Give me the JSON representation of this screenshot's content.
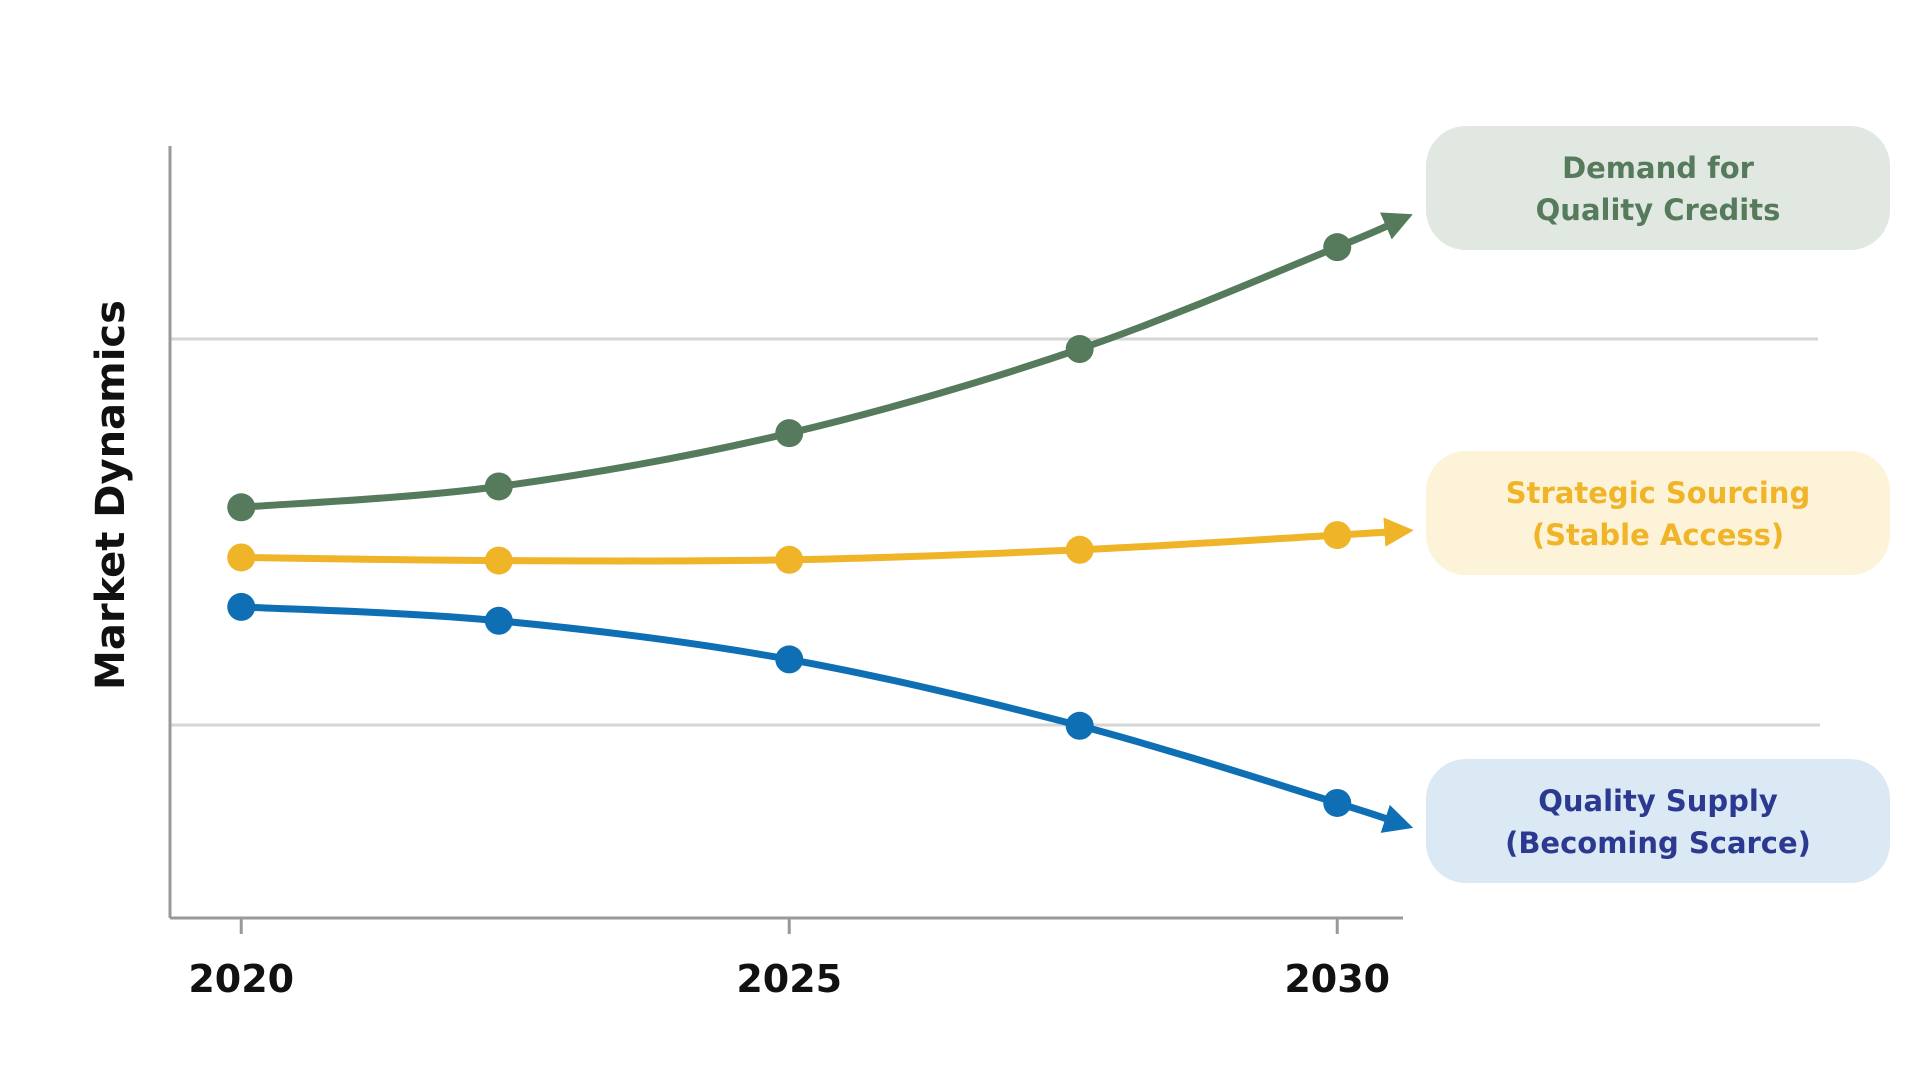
{
  "chart_data": {
    "type": "line",
    "title": "",
    "xlabel": "",
    "ylabel": "Market Dynamics",
    "x_ticks": [
      "2020",
      "2025",
      "2030"
    ],
    "xlim": [
      2019.35,
      2030.6
    ],
    "ylim": [
      0,
      100
    ],
    "grid": "horizontal",
    "x": [
      2020,
      2022.35,
      2025,
      2027.65,
      2030
    ],
    "series": [
      {
        "name": "Demand for Quality Credits",
        "label_lines": [
          "Demand for",
          "Quality Credits"
        ],
        "color": "#567a5c",
        "label_bg": "#e0e8e1",
        "values": [
          53.2,
          55.9,
          62.8,
          73.7,
          86.9
        ]
      },
      {
        "name": "Strategic Sourcing (Stable Access)",
        "label_lines": [
          "Strategic Sourcing",
          "(Stable Access)"
        ],
        "color": "#f0b429",
        "label_bg": "#fdf3d8",
        "values": [
          46.7,
          46.3,
          46.4,
          47.7,
          49.6
        ]
      },
      {
        "name": "Quality Supply (Becoming Scarce)",
        "label_lines": [
          "Quality Supply",
          "(Becoming Scarce)"
        ],
        "color": "#0f6fb4",
        "label_label_color": "#2b3990",
        "label_bg": "#dae9f4",
        "values": [
          40.3,
          38.5,
          33.5,
          24.9,
          14.9
        ]
      }
    ]
  }
}
